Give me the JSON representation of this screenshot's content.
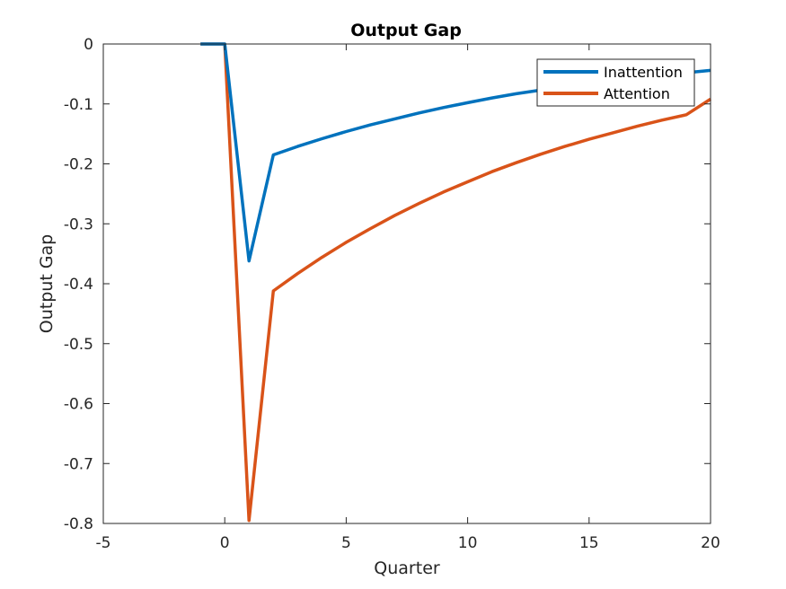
{
  "chart_data": {
    "type": "line",
    "title": "Output Gap",
    "xlabel": "Quarter",
    "ylabel": "Output Gap",
    "xlim": [
      -5,
      20
    ],
    "ylim": [
      -0.8,
      0
    ],
    "xticks": [
      -5,
      0,
      5,
      10,
      15,
      20
    ],
    "yticks": [
      -0.8,
      -0.7,
      -0.6,
      -0.5,
      -0.4,
      -0.3,
      -0.2,
      -0.1,
      0
    ],
    "grid": false,
    "legend_position": "top-right",
    "series": [
      {
        "name": "Inattention",
        "color": "#0072BD",
        "x": [
          -1,
          0,
          1,
          2,
          3,
          4,
          5,
          6,
          7,
          8,
          9,
          10,
          11,
          12,
          13,
          14,
          15,
          16,
          17,
          18,
          19,
          20
        ],
        "y": [
          0,
          0,
          -0.362,
          -0.185,
          -0.171,
          -0.158,
          -0.146,
          -0.135,
          -0.125,
          -0.115,
          -0.106,
          -0.098,
          -0.09,
          -0.083,
          -0.077,
          -0.071,
          -0.066,
          -0.061,
          -0.056,
          -0.052,
          -0.048,
          -0.044
        ]
      },
      {
        "name": "Attention",
        "color": "#D95319",
        "x": [
          -1,
          0,
          1,
          2,
          3,
          4,
          5,
          6,
          7,
          8,
          9,
          10,
          11,
          12,
          13,
          14,
          15,
          16,
          17,
          18,
          19,
          20
        ],
        "y": [
          0,
          0,
          -0.795,
          -0.412,
          -0.383,
          -0.356,
          -0.331,
          -0.308,
          -0.286,
          -0.266,
          -0.247,
          -0.23,
          -0.213,
          -0.198,
          -0.184,
          -0.171,
          -0.159,
          -0.148,
          -0.137,
          -0.127,
          -0.118,
          -0.092
        ]
      }
    ]
  }
}
